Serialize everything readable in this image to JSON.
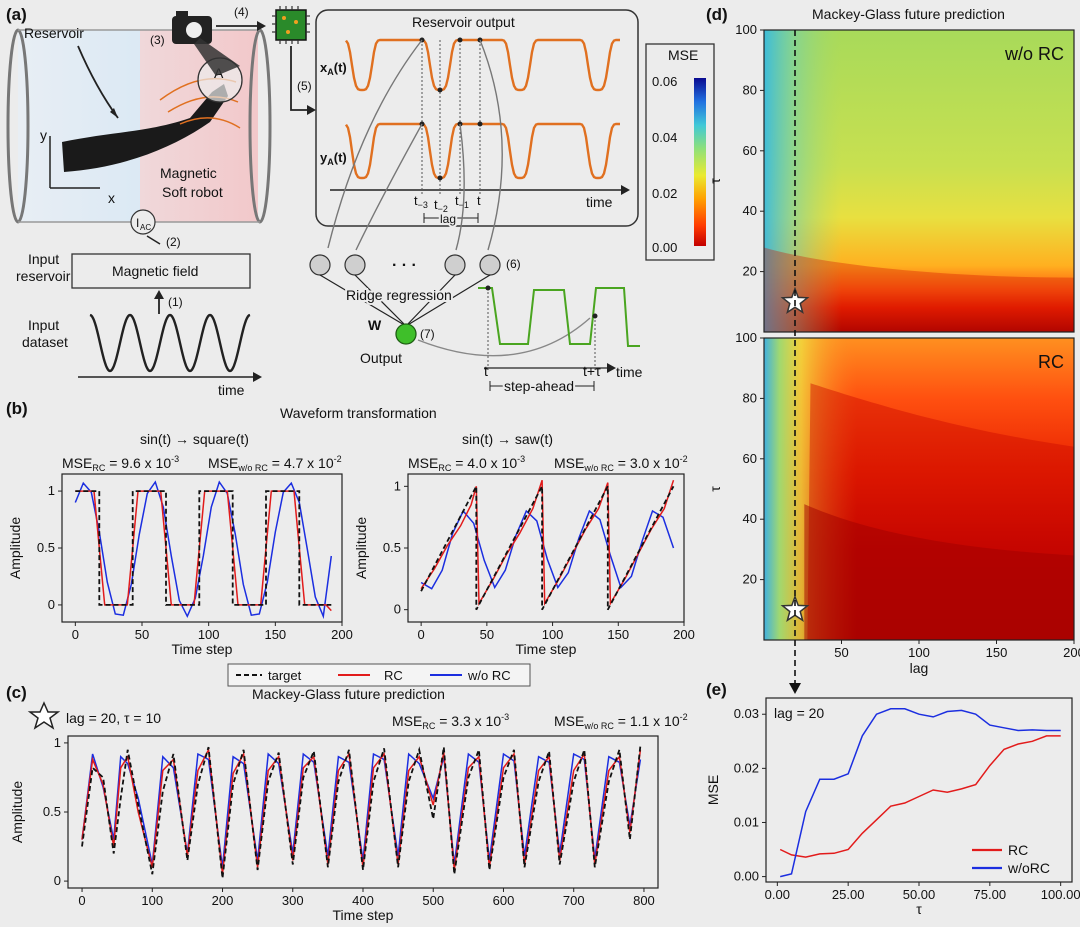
{
  "colors": {
    "target": "#111111",
    "rc": "#e21b1b",
    "wo_rc": "#1b2ee0",
    "reservoir_trace": "#e07020",
    "output_trace": "#4aa520",
    "node_out": "#3fbf2a",
    "background": "#ececec"
  },
  "panel_a": {
    "label": "(a)",
    "reservoir_label": "Reservoir",
    "axis_y": "y",
    "axis_x": "x",
    "point_label": "A",
    "robot_label_1": "Magnetic",
    "robot_label_2": "Soft robot",
    "current_label": "I",
    "current_sub": "AC",
    "steps": [
      "(1)",
      "(2)",
      "(3)",
      "(4)",
      "(5)",
      "(6)",
      "(7)"
    ],
    "input_reservoir_1": "Input",
    "input_reservoir_2": "reservoir",
    "magnetic_field": "Magnetic field",
    "input_dataset_1": "Input",
    "input_dataset_2": "dataset",
    "time_label": "time",
    "reservoir_output_title": "Reservoir output",
    "xa_label": "x",
    "ya_label": "y",
    "sub_a": "A",
    "time_arg": "(t)",
    "t_labels": [
      "t",
      "t",
      "t",
      "t"
    ],
    "t_subs": [
      "−3",
      "−2",
      "−1",
      ""
    ],
    "lag_label": "lag",
    "dots": "· · ·",
    "ridge_label": "Ridge regression",
    "w_label": "W",
    "output_label": "Output",
    "t_out": "t",
    "t_tau": "t+τ",
    "step_ahead": "step-ahead",
    "colorbar_title": "MSE",
    "colorbar_ticks": [
      "0.06",
      "0.04",
      "0.02",
      "0.00"
    ]
  },
  "panel_b": {
    "label": "(b)",
    "title": "Waveform transformation",
    "left": {
      "subtitle": "sin(t) → square(t)",
      "mse_rc_prefix": "MSE",
      "mse_rc_sub": "RC",
      "mse_rc_value": " = 9.6 x 10",
      "mse_rc_exp": "-3",
      "mse_wo_prefix": "MSE",
      "mse_wo_sub": "w/o RC",
      "mse_wo_value": " = 4.7 x 10",
      "mse_wo_exp": "-2"
    },
    "right": {
      "subtitle": "sin(t) → saw(t)",
      "mse_rc_prefix": "MSE",
      "mse_rc_sub": "RC",
      "mse_rc_value": " = 4.0 x 10",
      "mse_rc_exp": "-3",
      "mse_wo_prefix": "MSE",
      "mse_wo_sub": "w/o RC",
      "mse_wo_value": " = 3.0 x 10",
      "mse_wo_exp": "-2"
    },
    "legend": [
      "target",
      "RC",
      "w/o RC"
    ]
  },
  "panel_c": {
    "label": "(c)",
    "title": "Mackey-Glass future prediction",
    "star_note": "lag = 20,  τ = 10",
    "mse_rc_prefix": "MSE",
    "mse_rc_sub": "RC",
    "mse_rc_value": " = 3.3 x 10",
    "mse_rc_exp": "-3",
    "mse_wo_prefix": "MSE",
    "mse_wo_sub": "w/o RC",
    "mse_wo_value": " = 1.1 x 10",
    "mse_wo_exp": "-2"
  },
  "panel_d": {
    "label": "(d)",
    "title": "Mackey-Glass future prediction",
    "top_tag": "w/o RC",
    "bottom_tag": "RC"
  },
  "panel_e": {
    "label": "(e)",
    "note": "lag = 20"
  },
  "chart_data": [
    {
      "id": "b_square",
      "type": "line",
      "xlabel": "Time step",
      "ylabel": "Amplitude",
      "xlim": [
        -10,
        200
      ],
      "ylim": [
        -0.15,
        1.15
      ],
      "xticks": [
        0,
        50,
        100,
        150,
        200
      ],
      "yticks": [
        0.0,
        0.5,
        1.0
      ],
      "series": [
        {
          "name": "target",
          "x": [
            0,
            18,
            18,
            43,
            43,
            68,
            68,
            93,
            93,
            118,
            118,
            143,
            143,
            168,
            168,
            192
          ],
          "y": [
            1,
            1,
            0,
            0,
            1,
            1,
            0,
            0,
            1,
            1,
            0,
            0,
            1,
            1,
            0,
            0
          ]
        },
        {
          "name": "RC",
          "x": [
            0,
            14,
            18,
            22,
            39,
            43,
            47,
            64,
            68,
            72,
            89,
            93,
            97,
            114,
            118,
            122,
            139,
            143,
            147,
            164,
            168,
            172,
            188,
            192
          ],
          "y": [
            1.0,
            1.0,
            0.5,
            0.0,
            0.0,
            0.5,
            1.0,
            1.0,
            0.5,
            0.0,
            0.0,
            0.5,
            1.0,
            1.0,
            0.5,
            0.0,
            0.0,
            0.5,
            1.0,
            1.0,
            0.5,
            0.0,
            0.0,
            -0.05
          ]
        },
        {
          "name": "w/o RC",
          "x": [
            0,
            6,
            12,
            18,
            24,
            30,
            36,
            42,
            48,
            54,
            60,
            66,
            72,
            78,
            84,
            90,
            96,
            102,
            108,
            114,
            120,
            126,
            132,
            138,
            144,
            150,
            156,
            162,
            168,
            174,
            180,
            186,
            192
          ],
          "y": [
            0.9,
            1.07,
            0.99,
            0.64,
            0.2,
            -0.08,
            -0.09,
            0.18,
            0.62,
            0.98,
            1.08,
            0.86,
            0.43,
            0.04,
            -0.1,
            0.06,
            0.43,
            0.86,
            1.08,
            0.98,
            0.62,
            0.18,
            -0.09,
            -0.08,
            0.2,
            0.64,
            0.99,
            1.07,
            0.9,
            0.49,
            0.07,
            -0.1,
            0.43
          ]
        }
      ]
    },
    {
      "id": "b_saw",
      "type": "line",
      "xlabel": "Time step",
      "ylabel": "Amplitude",
      "xlim": [
        -10,
        200
      ],
      "ylim": [
        -0.1,
        1.1
      ],
      "xticks": [
        0,
        50,
        100,
        150,
        200
      ],
      "yticks": [
        0.0,
        0.5,
        1.0
      ],
      "series": [
        {
          "name": "target",
          "x": [
            0,
            42,
            42,
            92,
            92,
            142,
            142,
            192
          ],
          "y": [
            0.15,
            1.0,
            0.0,
            1.0,
            0.0,
            1.0,
            0.0,
            1.0
          ]
        },
        {
          "name": "RC",
          "x": [
            0,
            10,
            20,
            30,
            38,
            42,
            44,
            55,
            65,
            75,
            85,
            92,
            94,
            105,
            115,
            125,
            135,
            142,
            144,
            155,
            165,
            175,
            185,
            192
          ],
          "y": [
            0.17,
            0.33,
            0.52,
            0.68,
            0.85,
            1.0,
            0.05,
            0.25,
            0.45,
            0.62,
            0.82,
            1.05,
            0.05,
            0.25,
            0.45,
            0.65,
            0.82,
            1.03,
            0.05,
            0.25,
            0.45,
            0.65,
            0.82,
            1.05
          ]
        },
        {
          "name": "w/o RC",
          "x": [
            0,
            8,
            16,
            24,
            32,
            40,
            48,
            56,
            64,
            72,
            80,
            88,
            96,
            104,
            112,
            120,
            128,
            136,
            144,
            152,
            160,
            168,
            176,
            184,
            192
          ],
          "y": [
            0.22,
            0.17,
            0.32,
            0.62,
            0.8,
            0.7,
            0.4,
            0.18,
            0.32,
            0.6,
            0.8,
            0.72,
            0.41,
            0.18,
            0.3,
            0.58,
            0.8,
            0.73,
            0.44,
            0.18,
            0.27,
            0.55,
            0.8,
            0.75,
            0.5
          ]
        }
      ]
    },
    {
      "id": "c_mackey",
      "type": "line",
      "xlabel": "Time step",
      "ylabel": "Amplitude",
      "xlim": [
        -20,
        820
      ],
      "ylim": [
        -0.05,
        1.05
      ],
      "xticks": [
        0,
        100,
        200,
        300,
        400,
        500,
        600,
        700,
        800
      ],
      "yticks": [
        0.0,
        0.5,
        1.0
      ],
      "series": [
        {
          "name": "target",
          "x": [
            0,
            15,
            30,
            45,
            55,
            65,
            80,
            100,
            115,
            130,
            150,
            165,
            180,
            200,
            215,
            230,
            250,
            265,
            280,
            300,
            315,
            330,
            350,
            365,
            380,
            400,
            415,
            430,
            450,
            465,
            480,
            500,
            515,
            530,
            550,
            565,
            580,
            600,
            615,
            630,
            650,
            665,
            680,
            700,
            715,
            730,
            750,
            765,
            780,
            795
          ],
          "y": [
            0.25,
            0.82,
            0.75,
            0.2,
            0.6,
            0.95,
            0.55,
            0.05,
            0.65,
            0.92,
            0.15,
            0.7,
            0.97,
            0.02,
            0.7,
            0.95,
            0.08,
            0.72,
            0.93,
            0.12,
            0.75,
            0.94,
            0.1,
            0.72,
            0.95,
            0.08,
            0.72,
            0.96,
            0.1,
            0.72,
            0.95,
            0.45,
            0.97,
            0.05,
            0.75,
            0.95,
            0.08,
            0.75,
            0.95,
            0.1,
            0.72,
            0.94,
            0.12,
            0.72,
            0.95,
            0.1,
            0.72,
            0.95,
            0.3,
            0.98
          ]
        },
        {
          "name": "RC",
          "x": [
            0,
            15,
            30,
            45,
            55,
            65,
            80,
            100,
            115,
            130,
            150,
            165,
            180,
            200,
            215,
            230,
            250,
            265,
            280,
            300,
            315,
            330,
            350,
            365,
            380,
            400,
            415,
            430,
            450,
            465,
            480,
            500,
            515,
            530,
            550,
            565,
            580,
            600,
            615,
            630,
            650,
            665,
            680,
            700,
            715,
            730,
            750,
            765,
            780,
            795
          ],
          "y": [
            0.3,
            0.88,
            0.7,
            0.25,
            0.82,
            0.9,
            0.5,
            0.1,
            0.8,
            0.88,
            0.18,
            0.8,
            0.95,
            0.05,
            0.78,
            0.92,
            0.1,
            0.8,
            0.9,
            0.15,
            0.82,
            0.9,
            0.12,
            0.8,
            0.92,
            0.1,
            0.82,
            0.92,
            0.12,
            0.8,
            0.9,
            0.55,
            0.93,
            0.08,
            0.82,
            0.9,
            0.1,
            0.82,
            0.92,
            0.12,
            0.8,
            0.9,
            0.15,
            0.8,
            0.92,
            0.12,
            0.8,
            0.9,
            0.35,
            0.95
          ]
        },
        {
          "name": "w/o RC",
          "x": [
            0,
            15,
            30,
            45,
            55,
            65,
            80,
            100,
            115,
            130,
            150,
            165,
            180,
            200,
            215,
            230,
            250,
            265,
            280,
            300,
            315,
            330,
            350,
            365,
            380,
            400,
            415,
            430,
            450,
            465,
            480,
            500,
            515,
            530,
            550,
            565,
            580,
            600,
            615,
            630,
            650,
            665,
            680,
            700,
            715,
            730,
            750,
            765,
            780,
            795
          ],
          "y": [
            0.3,
            0.92,
            0.68,
            0.3,
            0.9,
            0.85,
            0.6,
            0.12,
            0.9,
            0.82,
            0.2,
            0.92,
            0.88,
            0.1,
            0.9,
            0.85,
            0.15,
            0.92,
            0.85,
            0.2,
            0.92,
            0.86,
            0.18,
            0.9,
            0.86,
            0.15,
            0.92,
            0.88,
            0.18,
            0.92,
            0.85,
            0.6,
            0.9,
            0.12,
            0.92,
            0.86,
            0.15,
            0.92,
            0.87,
            0.18,
            0.9,
            0.86,
            0.2,
            0.92,
            0.88,
            0.16,
            0.9,
            0.86,
            0.4,
            0.88
          ]
        }
      ]
    },
    {
      "id": "d_heatmap",
      "type": "heatmap",
      "xlabel": "lag",
      "ylabel": "τ",
      "xlim": [
        0,
        200
      ],
      "ylim": [
        0,
        100
      ],
      "xticks": [
        50,
        100,
        150,
        200
      ],
      "yticks": [
        20,
        40,
        60,
        80,
        100
      ],
      "colorbar": {
        "label": "MSE",
        "range": [
          0.0,
          0.06
        ]
      },
      "marker": {
        "lag": 20,
        "tau": 10
      }
    },
    {
      "id": "e_mse",
      "type": "line",
      "xlabel": "τ",
      "ylabel": "MSE",
      "xlim": [
        -4,
        104
      ],
      "ylim": [
        -0.001,
        0.033
      ],
      "xticks": [
        0,
        25,
        50,
        75,
        100
      ],
      "yticks": [
        0.0,
        0.01,
        0.02,
        0.03
      ],
      "series": [
        {
          "name": "RC",
          "x": [
            1,
            5,
            10,
            15,
            20,
            25,
            30,
            35,
            40,
            45,
            50,
            55,
            60,
            65,
            70,
            75,
            80,
            85,
            90,
            95,
            100
          ],
          "y": [
            0.005,
            0.004,
            0.0036,
            0.0042,
            0.0043,
            0.005,
            0.008,
            0.0105,
            0.013,
            0.0136,
            0.0148,
            0.016,
            0.0156,
            0.0162,
            0.017,
            0.0205,
            0.0235,
            0.0245,
            0.025,
            0.026,
            0.026
          ]
        },
        {
          "name": "w/oRC",
          "x": [
            1,
            5,
            10,
            15,
            20,
            25,
            30,
            35,
            40,
            45,
            50,
            55,
            60,
            65,
            70,
            75,
            80,
            85,
            90,
            95,
            100
          ],
          "y": [
            0.0,
            0.0005,
            0.012,
            0.018,
            0.018,
            0.019,
            0.026,
            0.03,
            0.031,
            0.031,
            0.03,
            0.0295,
            0.0305,
            0.0307,
            0.03,
            0.028,
            0.0275,
            0.027,
            0.0271,
            0.027,
            0.027
          ]
        }
      ]
    }
  ]
}
